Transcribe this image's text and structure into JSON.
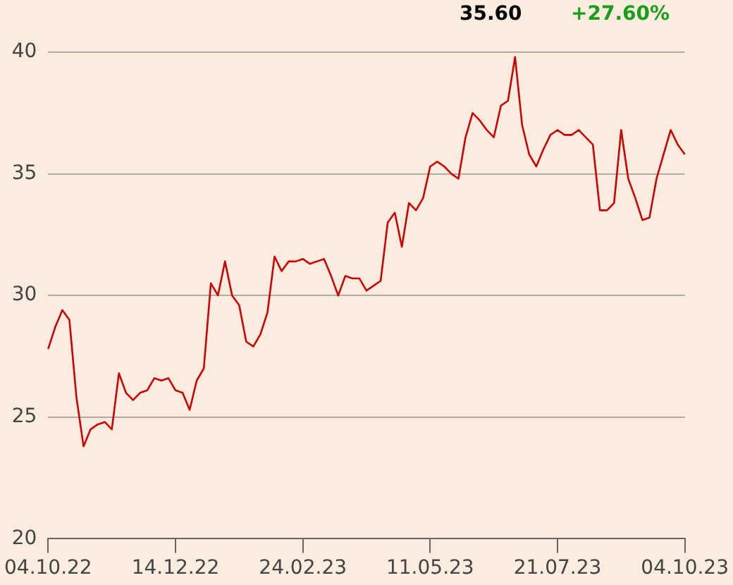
{
  "chart_data": {
    "type": "line",
    "annotations": [
      "35.60",
      "+27.60%"
    ],
    "categories": [
      "04.10.22",
      null,
      null,
      null,
      null,
      null,
      null,
      null,
      null,
      null,
      null,
      null,
      null,
      null,
      null,
      null,
      null,
      null,
      "14.12.22",
      null,
      null,
      null,
      null,
      null,
      null,
      null,
      null,
      null,
      null,
      null,
      null,
      null,
      null,
      null,
      null,
      null,
      "24.02.23",
      null,
      null,
      null,
      null,
      null,
      null,
      null,
      null,
      null,
      null,
      null,
      null,
      null,
      null,
      null,
      null,
      null,
      "11.05.23",
      null,
      null,
      null,
      null,
      null,
      null,
      null,
      null,
      null,
      null,
      null,
      null,
      null,
      null,
      null,
      null,
      null,
      "21.07.23",
      null,
      null,
      null,
      null,
      null,
      null,
      null,
      null,
      null,
      null,
      null,
      null,
      null,
      null,
      null,
      null,
      null,
      "04.10.23"
    ],
    "series": [
      {
        "type": "line",
        "color": "#cc0000",
        "values": [
          27.8,
          28.7,
          29.4,
          29.0,
          25.8,
          23.8,
          24.5,
          24.7,
          24.8,
          24.5,
          26.8,
          26.0,
          25.7,
          26.0,
          26.1,
          26.6,
          26.5,
          26.6,
          26.1,
          26.0,
          25.3,
          26.5,
          27.0,
          30.5,
          30.0,
          31.4,
          30.0,
          29.6,
          28.1,
          27.9,
          28.4,
          29.3,
          31.6,
          31.0,
          31.4,
          31.4,
          31.5,
          31.3,
          31.4,
          31.5,
          30.8,
          30.0,
          30.8,
          30.7,
          30.7,
          30.2,
          30.4,
          30.6,
          33.0,
          33.4,
          32.0,
          33.8,
          33.5,
          34.0,
          35.3,
          35.5,
          35.3,
          35.0,
          34.8,
          36.5,
          37.5,
          37.2,
          36.8,
          36.5,
          37.8,
          38.0,
          39.8,
          37.0,
          35.8,
          35.3,
          36.0,
          36.6,
          36.8,
          36.6,
          36.6,
          36.8,
          36.5,
          36.2,
          33.5,
          33.5,
          33.8,
          36.8,
          34.8,
          34.0,
          33.1,
          33.2,
          34.8,
          35.8,
          36.8,
          36.2,
          35.8
        ]
      }
    ],
    "ylim": [
      20,
      40
    ],
    "yticks": [
      20,
      25,
      30,
      35,
      40
    ],
    "tick_labels": "xy",
    "grid": "y",
    "legend": false,
    "marker": "none",
    "line_style": "solid"
  }
}
